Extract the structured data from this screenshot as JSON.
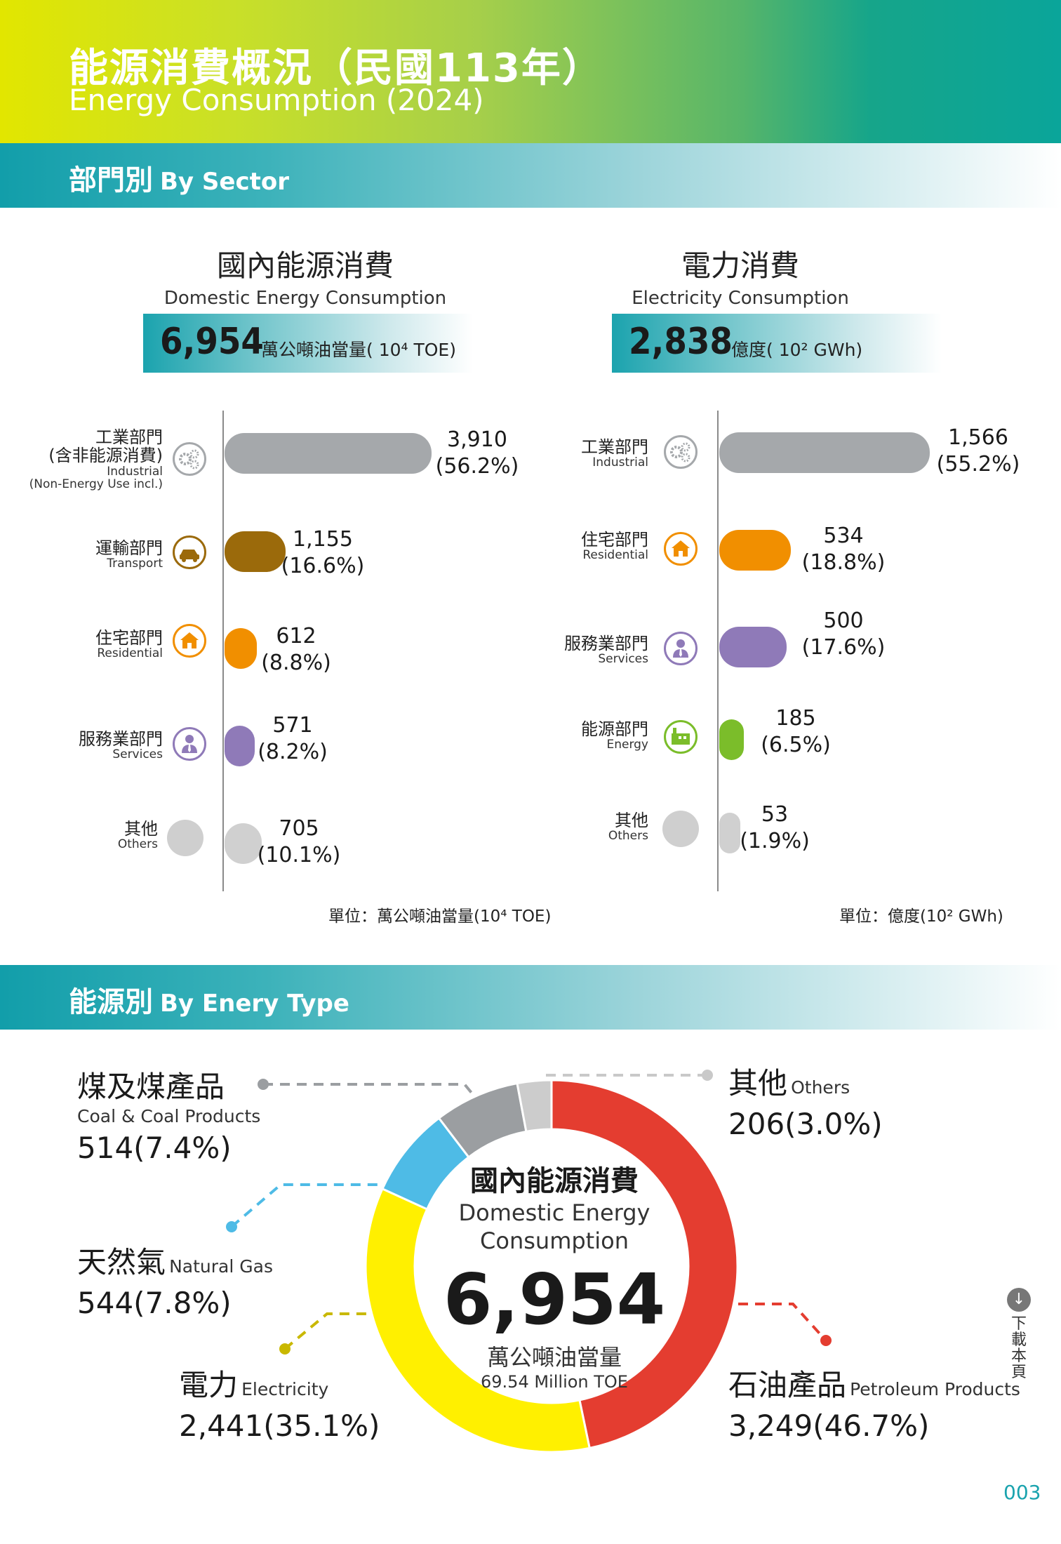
{
  "header": {
    "title_zh": "能源消費概況（民國113年）",
    "title_en": "Energy Consumption (2024)"
  },
  "sector_section": {
    "title_zh": "部門別",
    "title_en": "By Sector"
  },
  "domestic": {
    "title_zh": "國內能源消費",
    "title_en": "Domestic Energy Consumption",
    "total": "6,954",
    "total_unit": "萬公噸油當量( 10⁴ TOE)",
    "unit_note": "單位：萬公噸油當量(10⁴ TOE)"
  },
  "electricity": {
    "title_zh": "電力消費",
    "title_en": "Electricity Consumption",
    "total": "2,838",
    "total_unit": "億度( 10² GWh)",
    "unit_note": "單位：億度(10² GWh)"
  },
  "domestic_rows": [
    {
      "zh": "工業部門",
      "zh2": "(含非能源消費)",
      "en": "Industrial",
      "en2": "(Non-Energy Use incl.)",
      "value": "3,910",
      "pct": "(56.2%)",
      "icon": "gears-icon"
    },
    {
      "zh": "運輸部門",
      "en": "Transport",
      "value": "1,155",
      "pct": "(16.6%)",
      "icon": "car-icon"
    },
    {
      "zh": "住宅部門",
      "en": "Residential",
      "value": "612",
      "pct": "(8.8%)",
      "icon": "house-icon"
    },
    {
      "zh": "服務業部門",
      "en": "Services",
      "value": "571",
      "pct": "(8.2%)",
      "icon": "person-icon"
    },
    {
      "zh": "其他",
      "en": "Others",
      "value": "705",
      "pct": "(10.1%)",
      "icon": "circle-icon"
    }
  ],
  "electricity_rows": [
    {
      "zh": "工業部門",
      "en": "Industrial",
      "value": "1,566",
      "pct": "(55.2%)",
      "icon": "gears-icon"
    },
    {
      "zh": "住宅部門",
      "en": "Residential",
      "value": "534",
      "pct": "(18.8%)",
      "icon": "house-icon"
    },
    {
      "zh": "服務業部門",
      "en": "Services",
      "value": "500",
      "pct": "(17.6%)",
      "icon": "person-icon"
    },
    {
      "zh": "能源部門",
      "en": "Energy",
      "value": "185",
      "pct": "(6.5%)",
      "icon": "factory-icon"
    },
    {
      "zh": "其他",
      "en": "Others",
      "value": "53",
      "pct": "(1.9%)",
      "icon": "circle-icon"
    }
  ],
  "type_section": {
    "title_zh": "能源別",
    "title_en": "By Enery Type"
  },
  "donut_center": {
    "zh": "國內能源消費",
    "en1": "Domestic Energy",
    "en2": "Consumption",
    "value": "6,954",
    "unit_zh": "萬公噸油當量",
    "unit_en": "69.54 Million TOE"
  },
  "energy_types": {
    "coal": {
      "zh": "煤及煤產品",
      "en": "Coal & Coal Products",
      "value": "514(7.4%)"
    },
    "gas": {
      "zh": "天然氣",
      "en": "Natural Gas",
      "value": "544(7.8%)"
    },
    "electricity": {
      "zh": "電力",
      "en": "Electricity",
      "value": "2,441(35.1%)"
    },
    "others": {
      "zh": "其他",
      "en": "Others",
      "value": "206(3.0%)"
    },
    "petroleum": {
      "zh": "石油產品",
      "en": "Petroleum Products",
      "value": "3,249(46.7%)"
    }
  },
  "download": {
    "label": "下載本頁",
    "icon": "download-icon"
  },
  "page_number": "003",
  "colors": {
    "industrial": "#a5a8ab",
    "transport": "#9b6a0b",
    "residential": "#f18f00",
    "services": "#8f7ab8",
    "energy": "#7bbd2a",
    "others": "#d0d0d0",
    "petroleum": "#e43d30",
    "electricity": "#fff000",
    "gas": "#4ebbe6",
    "coal": "#9b9ea1",
    "other_type": "#cccccc"
  },
  "chart_data": [
    {
      "type": "bar",
      "title": "國內能源消費 Domestic Energy Consumption",
      "categories": [
        "工業部門 Industrial",
        "運輸部門 Transport",
        "住宅部門 Residential",
        "服務業部門 Services",
        "其他 Others"
      ],
      "values": [
        3910,
        1155,
        612,
        571,
        705
      ],
      "percent": [
        56.2,
        16.6,
        8.8,
        8.2,
        10.1
      ],
      "unit": "萬公噸油當量(10⁴ TOE)"
    },
    {
      "type": "bar",
      "title": "電力消費 Electricity Consumption",
      "categories": [
        "工業部門 Industrial",
        "住宅部門 Residential",
        "服務業部門 Services",
        "能源部門 Energy",
        "其他 Others"
      ],
      "values": [
        1566,
        534,
        500,
        185,
        53
      ],
      "percent": [
        55.2,
        18.8,
        17.6,
        6.5,
        1.9
      ],
      "unit": "億度(10² GWh)"
    },
    {
      "type": "pie",
      "title": "能源別 By Enery Type",
      "categories": [
        "石油產品 Petroleum Products",
        "電力 Electricity",
        "天然氣 Natural Gas",
        "煤及煤產品 Coal & Coal Products",
        "其他 Others"
      ],
      "values": [
        3249,
        2441,
        544,
        514,
        206
      ],
      "percent": [
        46.7,
        35.1,
        7.8,
        7.4,
        3.0
      ]
    }
  ]
}
